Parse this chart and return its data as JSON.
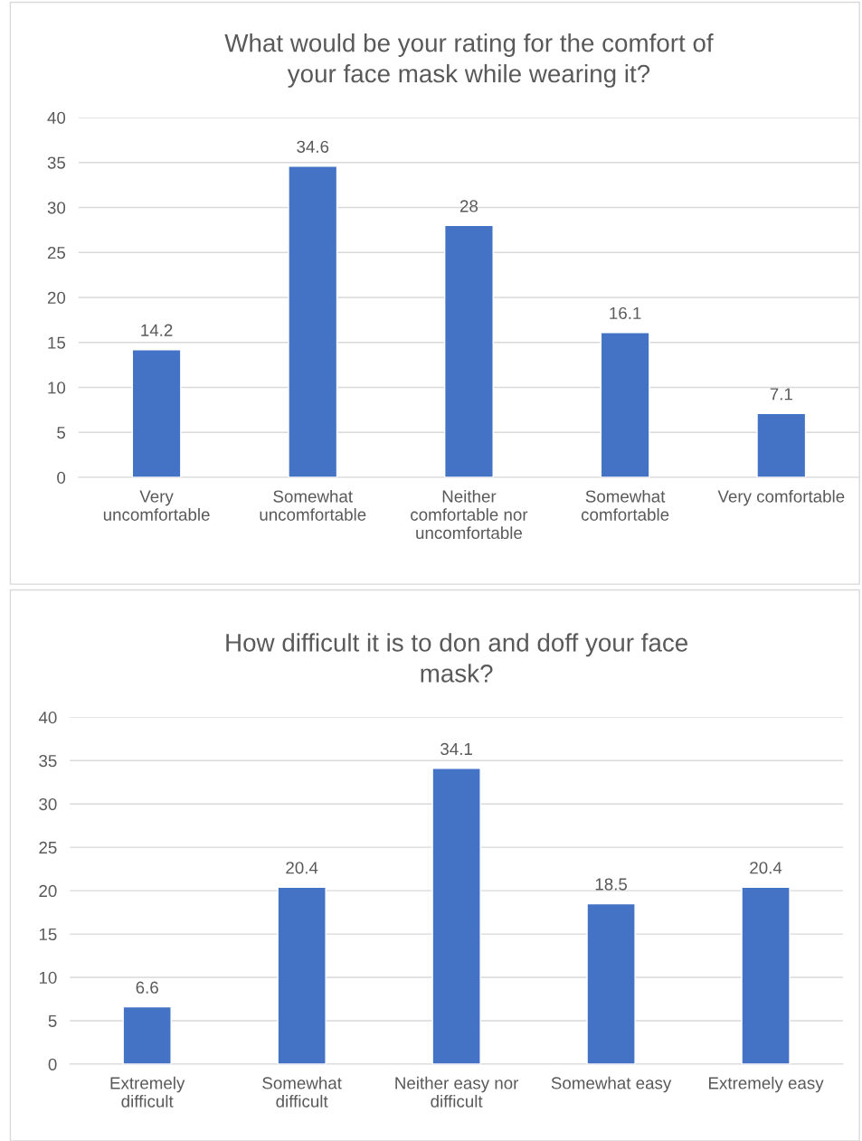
{
  "chart_data": [
    {
      "type": "bar",
      "title": "What would be your rating for the comfort of\nyour face mask while wearing it?",
      "categories": [
        "Very\nuncomfortable",
        "Somewhat\nuncomfortable",
        "Neither\ncomfortable nor\nuncomfortable",
        "Somewhat\ncomfortable",
        "Very comfortable"
      ],
      "values": [
        14.2,
        34.6,
        28,
        16.1,
        7.1
      ],
      "color": "#4472c4",
      "ylim": [
        0,
        40
      ],
      "yticks": [
        0,
        5,
        10,
        15,
        20,
        25,
        30,
        35,
        40
      ],
      "grid": "y",
      "data_labels": true
    },
    {
      "type": "bar",
      "title": "How difficult it is to don and doff your face\nmask?",
      "categories": [
        "Extremely\ndifficult",
        "Somewhat\ndifficult",
        "Neither easy nor\ndifficult",
        "Somewhat easy",
        "Extremely easy"
      ],
      "values": [
        6.6,
        20.4,
        34.1,
        18.5,
        20.4
      ],
      "color": "#4472c4",
      "ylim": [
        0,
        40
      ],
      "yticks": [
        0,
        5,
        10,
        15,
        20,
        25,
        30,
        35,
        40
      ],
      "grid": "y",
      "data_labels": true
    }
  ]
}
